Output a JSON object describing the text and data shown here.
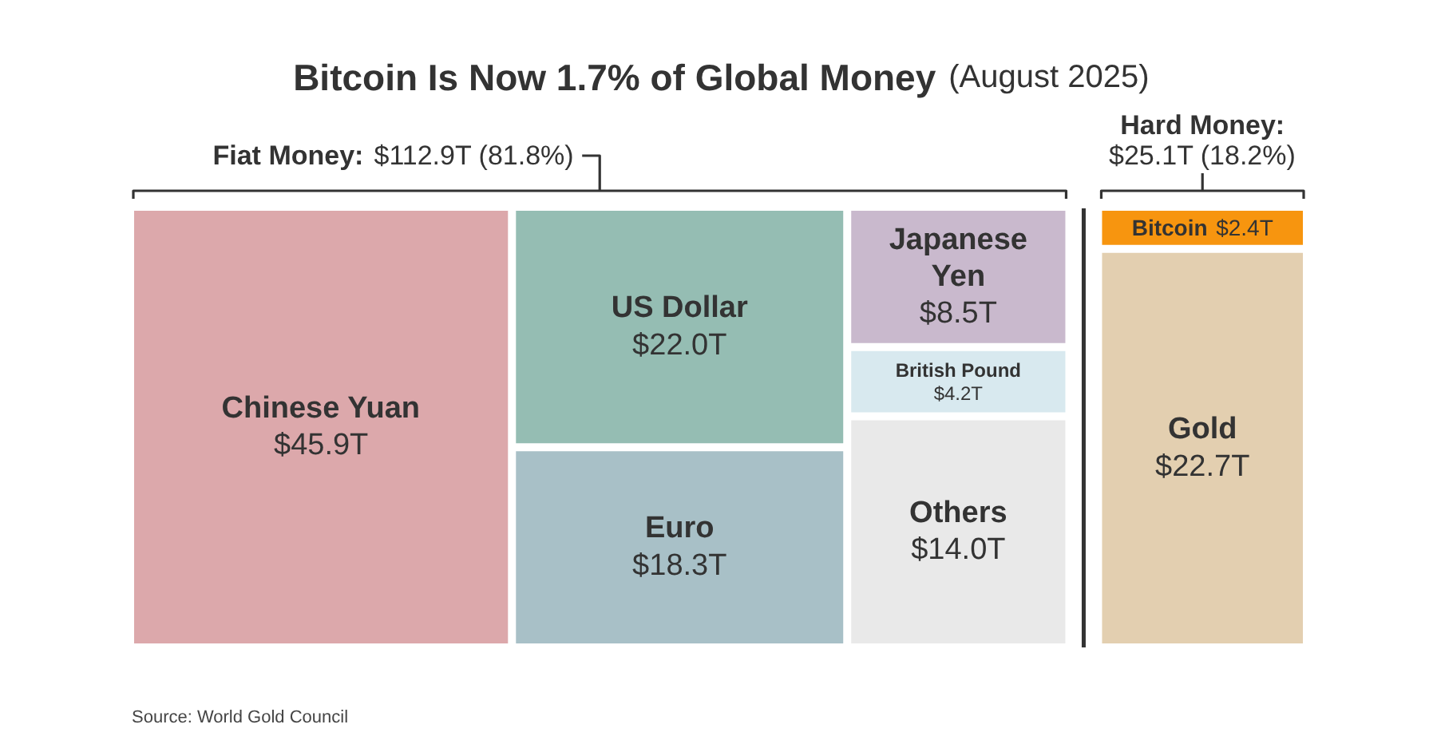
{
  "chart_data": {
    "type": "other",
    "title": "Bitcoin Is Now 1.7% of Global Money",
    "subtitle": "(August 2025)",
    "categories": [
      "Chinese Yuan",
      "US Dollar",
      "Euro",
      "Japanese Yen",
      "British Pound",
      "Others",
      "Bitcoin",
      "Gold"
    ],
    "series": [
      {
        "name": "Fiat Money: $112.9T (81.8%)",
        "values": [
          45.9,
          22.0,
          18.3,
          8.5,
          4.2,
          14.0,
          null,
          null
        ],
        "value_labels": [
          "$45.9T",
          "$22.0T",
          "$18.3T",
          "$8.5T",
          "$4.2T",
          "$14.0T",
          null,
          null
        ],
        "colors": [
          "#dca8ab",
          "#95bdb3",
          "#a8c0c7",
          "#c9b9cd",
          "#d8e9ef",
          "#e9e9e9",
          null,
          null
        ]
      },
      {
        "name": "Hard Money: $25.1T (18.2%)",
        "values": [
          null,
          null,
          null,
          null,
          null,
          null,
          2.4,
          22.7
        ],
        "value_labels": [
          null,
          null,
          null,
          null,
          null,
          null,
          "$2.4T",
          "$22.7T"
        ],
        "colors": [
          null,
          null,
          null,
          null,
          null,
          null,
          "#f7950f",
          "#e3cfb0"
        ]
      }
    ],
    "annotations": [
      "Source: World Gold Council"
    ]
  }
}
